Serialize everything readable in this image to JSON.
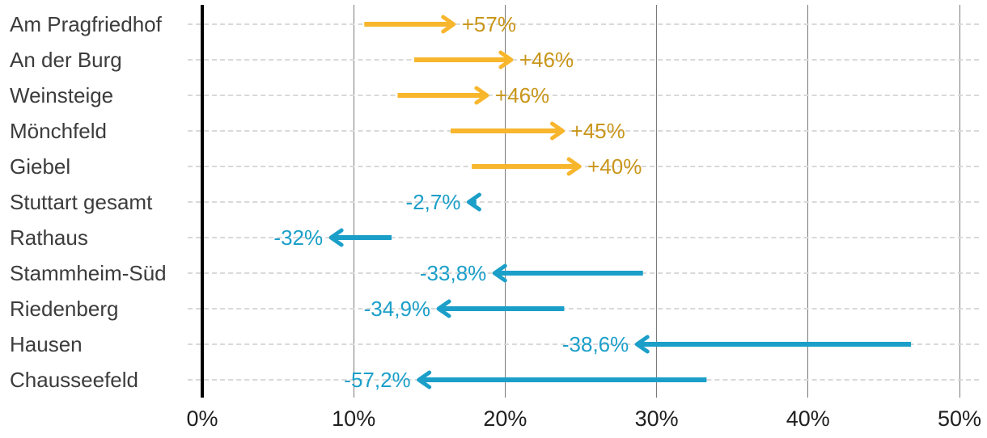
{
  "chart_data": {
    "type": "bar",
    "variant": "arrow-change-chart",
    "title": "",
    "xlabel": "",
    "ylabel": "",
    "unit": "%",
    "axis": {
      "min": 0,
      "max": 50,
      "grid": true,
      "ticks": [
        {
          "label": "0%",
          "value": 0
        },
        {
          "label": "10%",
          "value": 10
        },
        {
          "label": "20%",
          "value": 20
        },
        {
          "label": "30%",
          "value": 30
        },
        {
          "label": "40%",
          "value": 40
        },
        {
          "label": "50%",
          "value": 50
        }
      ]
    },
    "categories": [
      "Am Pragfriedhof",
      "An der Burg",
      "Weinsteige",
      "Mönchfeld",
      "Giebel",
      "Stuttart gesamt",
      "Rathaus",
      "Stammheim-Süd",
      "Riedenberg",
      "Hausen",
      "Chausseefeld"
    ],
    "rows": [
      {
        "label": "Am Pragfriedhof",
        "start": 10.7,
        "end": 16.6,
        "change": "+57%",
        "direction": "increase"
      },
      {
        "label": "An der Burg",
        "start": 14.0,
        "end": 20.4,
        "change": "+46%",
        "direction": "increase"
      },
      {
        "label": "Weinsteige",
        "start": 12.9,
        "end": 18.8,
        "change": "+46%",
        "direction": "increase"
      },
      {
        "label": "Mönchfeld",
        "start": 16.4,
        "end": 23.8,
        "change": "+45%",
        "direction": "increase"
      },
      {
        "label": "Giebel",
        "start": 17.8,
        "end": 24.9,
        "change": "+40%",
        "direction": "increase"
      },
      {
        "label": "Stuttart gesamt",
        "start": 18.1,
        "end": 17.6,
        "change": "-2,7%",
        "direction": "decrease"
      },
      {
        "label": "Rathaus",
        "start": 12.5,
        "end": 8.5,
        "change": "-32%",
        "direction": "decrease"
      },
      {
        "label": "Stammheim-Süd",
        "start": 29.1,
        "end": 19.3,
        "change": "-33,8%",
        "direction": "decrease"
      },
      {
        "label": "Riedenberg",
        "start": 23.9,
        "end": 15.6,
        "change": "-34,9%",
        "direction": "decrease"
      },
      {
        "label": "Hausen",
        "start": 46.8,
        "end": 28.7,
        "change": "-38,6%",
        "direction": "decrease"
      },
      {
        "label": "Chausseefeld",
        "start": 33.3,
        "end": 14.3,
        "change": "-57,2%",
        "direction": "decrease"
      }
    ],
    "colors": {
      "positive_arrow": "#F8B62D",
      "positive_label": "#C9961A",
      "negative_arrow": "#1B9FC9",
      "negative_label": "#1B9FC9",
      "zero_axis": "#000000",
      "gridline": "#7A7A7A",
      "row_guide": "#D9D9D9",
      "category_text": "#3C3C3C",
      "tick_text": "#1F1F1F",
      "background": "#FFFFFF"
    },
    "legend": {
      "visible": false
    }
  }
}
